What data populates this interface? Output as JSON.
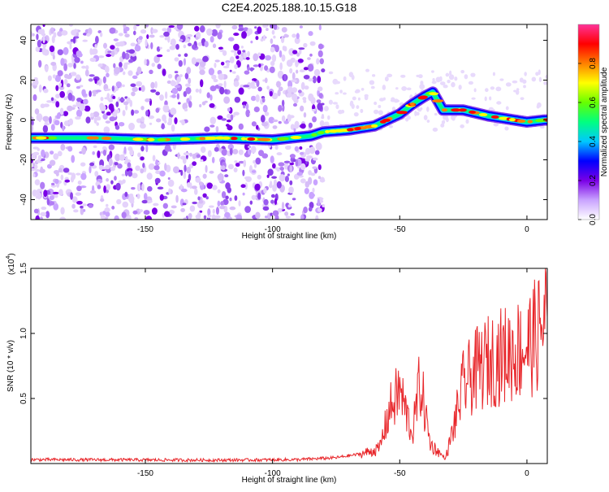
{
  "chart_data": [
    {
      "type": "heatmap",
      "title": "C2E4.2025.188.10.15.G18",
      "xlabel": "Height of straight line (km)",
      "ylabel": "Frequency (Hz)",
      "xlim": [
        -195,
        8
      ],
      "ylim": [
        -50,
        48
      ],
      "xticks": [
        -150,
        -100,
        -50,
        0
      ],
      "yticks": [
        -40,
        -20,
        0,
        20,
        40
      ],
      "colorbar": {
        "label": "Normalized spectral amplitude",
        "range": [
          0,
          1
        ],
        "ticks": [
          "0.0",
          "0.2",
          "0.4",
          "0.6",
          "0.8"
        ],
        "colors": [
          "#ffffff",
          "#c9a3ff",
          "#7a00e6",
          "#0000ff",
          "#00c8ff",
          "#00ff80",
          "#66ff00",
          "#ffff00",
          "#ff8000",
          "#ff0000",
          "#ff3399"
        ]
      },
      "ridge": [
        {
          "x": -195,
          "y": -9
        },
        {
          "x": -170,
          "y": -9
        },
        {
          "x": -145,
          "y": -10
        },
        {
          "x": -120,
          "y": -9
        },
        {
          "x": -100,
          "y": -10
        },
        {
          "x": -85,
          "y": -8
        },
        {
          "x": -80,
          "y": -6
        },
        {
          "x": -70,
          "y": -5
        },
        {
          "x": -60,
          "y": -3
        },
        {
          "x": -50,
          "y": 3
        },
        {
          "x": -45,
          "y": 8
        },
        {
          "x": -40,
          "y": 12
        },
        {
          "x": -37,
          "y": 14
        },
        {
          "x": -33,
          "y": 5
        },
        {
          "x": -25,
          "y": 5
        },
        {
          "x": -15,
          "y": 2
        },
        {
          "x": -5,
          "y": 0
        },
        {
          "x": 0,
          "y": -1
        },
        {
          "x": 7,
          "y": 0
        }
      ],
      "noise_region": [
        -195,
        -80
      ]
    },
    {
      "type": "line",
      "title": "",
      "xlabel": "Height of straight line (km)",
      "ylabel": "SNR (10 * v/v)",
      "y_multiplier": "(x10",
      "y_multiplier_exp": "4",
      "y_multiplier_close": ")",
      "xlim": [
        -195,
        8
      ],
      "ylim": [
        0,
        1.5
      ],
      "xticks": [
        -150,
        -100,
        -50,
        0
      ],
      "yticks": [
        "0.5",
        "1.0",
        "1.5"
      ],
      "color": "#e8262a",
      "envelope": [
        {
          "x": -195,
          "y": 0.04
        },
        {
          "x": -120,
          "y": 0.035
        },
        {
          "x": -90,
          "y": 0.04
        },
        {
          "x": -75,
          "y": 0.06
        },
        {
          "x": -65,
          "y": 0.1
        },
        {
          "x": -58,
          "y": 0.15
        },
        {
          "x": -54,
          "y": 0.55
        },
        {
          "x": -50,
          "y": 0.75
        },
        {
          "x": -45,
          "y": 0.3
        },
        {
          "x": -42,
          "y": 0.85
        },
        {
          "x": -38,
          "y": 0.2
        },
        {
          "x": -32,
          "y": 0.05
        },
        {
          "x": -29,
          "y": 0.35
        },
        {
          "x": -25,
          "y": 0.8
        },
        {
          "x": -20,
          "y": 0.95
        },
        {
          "x": -15,
          "y": 1.05
        },
        {
          "x": -10,
          "y": 1.1
        },
        {
          "x": -5,
          "y": 1.15
        },
        {
          "x": 0,
          "y": 1.2
        },
        {
          "x": 5,
          "y": 1.35
        },
        {
          "x": 7,
          "y": 1.5
        }
      ]
    }
  ]
}
